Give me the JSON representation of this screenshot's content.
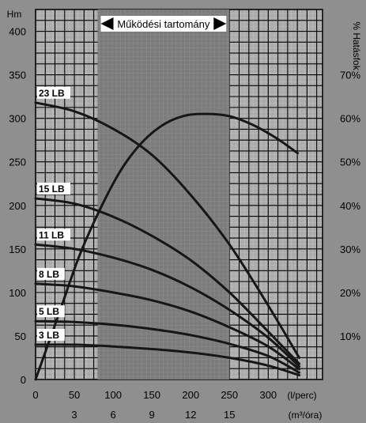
{
  "chart_data": {
    "type": "line",
    "range_label": "Működési tartomány",
    "operating_range": [
      80,
      250
    ],
    "x_unit_primary": "(l/perc)",
    "x_unit_secondary": "(m³/óra)",
    "y_left_unit": "Hm",
    "y_right_unit": "% Hatásfok",
    "xlim": [
      0,
      370
    ],
    "ylim_left": [
      0,
      425
    ],
    "ylim_right_percent": [
      0,
      85
    ],
    "x_ticks": [
      0,
      50,
      100,
      150,
      200,
      250,
      300
    ],
    "x_tick_labels": [
      "0",
      "50",
      "100",
      "150",
      "200",
      "250",
      "300"
    ],
    "x2_ticks": [
      50,
      100,
      150,
      200,
      250
    ],
    "x2_tick_labels": [
      "3",
      "6",
      "9",
      "12",
      "15"
    ],
    "y_ticks": [
      0,
      50,
      100,
      150,
      200,
      250,
      300,
      350,
      400
    ],
    "y_tick_labels": [
      "0",
      "50",
      "100",
      "150",
      "200",
      "250",
      "300",
      "350",
      "400"
    ],
    "y2_ticks": [
      10,
      20,
      30,
      40,
      50,
      60,
      70
    ],
    "y2_tick_labels": [
      "10%",
      "20%",
      "30%",
      "40%",
      "50%",
      "60%",
      "70%"
    ],
    "series": [
      {
        "name": "23 LB",
        "x": [
          0,
          50,
          100,
          150,
          200,
          250,
          300,
          340
        ],
        "y": [
          318,
          308,
          288,
          258,
          212,
          155,
          85,
          25
        ]
      },
      {
        "name": "15 LB",
        "x": [
          0,
          50,
          100,
          150,
          200,
          250,
          300,
          340
        ],
        "y": [
          208,
          202,
          187,
          165,
          137,
          100,
          55,
          18
        ]
      },
      {
        "name": "11 LB",
        "x": [
          0,
          50,
          100,
          150,
          200,
          250,
          300,
          340
        ],
        "y": [
          155,
          150,
          140,
          126,
          106,
          80,
          48,
          15
        ]
      },
      {
        "name": "8 LB",
        "x": [
          0,
          50,
          100,
          150,
          200,
          250,
          300,
          340
        ],
        "y": [
          110,
          107,
          100,
          91,
          78,
          60,
          38,
          12
        ]
      },
      {
        "name": "5 LB",
        "x": [
          0,
          50,
          100,
          150,
          200,
          250,
          300,
          340
        ],
        "y": [
          67,
          66,
          63,
          58,
          51,
          41,
          27,
          8
        ]
      },
      {
        "name": "3 LB",
        "x": [
          0,
          50,
          100,
          150,
          200,
          250,
          300,
          340
        ],
        "y": [
          40,
          40,
          38,
          35,
          31,
          25,
          16,
          5
        ]
      },
      {
        "name": "efficiency",
        "axis": "right",
        "x": [
          0,
          30,
          60,
          100,
          130,
          160,
          190,
          220,
          250,
          280,
          310,
          338
        ],
        "y": [
          0,
          15,
          30,
          45,
          53,
          58,
          60.5,
          61,
          60.5,
          58.5,
          55.5,
          52
        ]
      }
    ]
  }
}
